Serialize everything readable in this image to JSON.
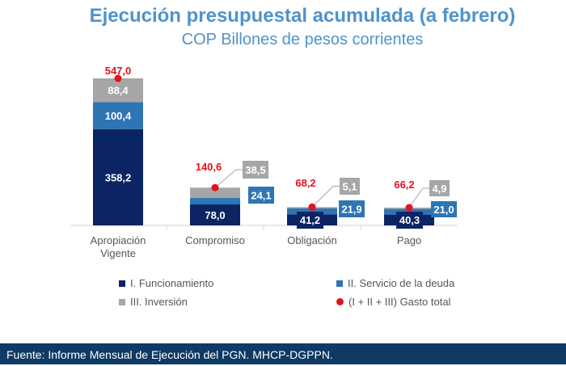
{
  "chart_data": {
    "type": "bar",
    "stacked": true,
    "title": "Ejecución presupuestal acumulada (a febrero)",
    "subtitle": "COP Billones de pesos corrientes",
    "categories": [
      "Apropiación Vigente",
      "Compromiso",
      "Obligación",
      "Pago"
    ],
    "series": [
      {
        "name": "I. Funcionamiento",
        "color": "#0b2463",
        "values": [
          358.2,
          78.0,
          41.2,
          40.3
        ],
        "labels": [
          "358,2",
          "78,0",
          "41,2",
          "40,3"
        ]
      },
      {
        "name": "II. Servicio de la deuda",
        "color": "#2e75b6",
        "values": [
          100.4,
          24.1,
          21.9,
          21.0
        ],
        "labels": [
          "100,4",
          "24,1",
          "21,9",
          "21,0"
        ]
      },
      {
        "name": "III. Inversión",
        "color": "#a6a6a6",
        "values": [
          88.4,
          38.5,
          5.1,
          4.9
        ],
        "labels": [
          "88,4",
          "38,5",
          "5,1",
          "4,9"
        ]
      }
    ],
    "total": {
      "name": "(I + II + III) Gasto total",
      "color": "#e8101a",
      "values": [
        547.0,
        140.6,
        68.2,
        66.2
      ],
      "labels": [
        "547,0",
        "140,6",
        "68,2",
        "66,2"
      ]
    },
    "ylim": [
      0,
      547
    ],
    "grid": false,
    "legend": "bottom"
  },
  "footer": "Fuente: Informe Mensual de Ejecución del PGN. MHCP-DGPPN."
}
